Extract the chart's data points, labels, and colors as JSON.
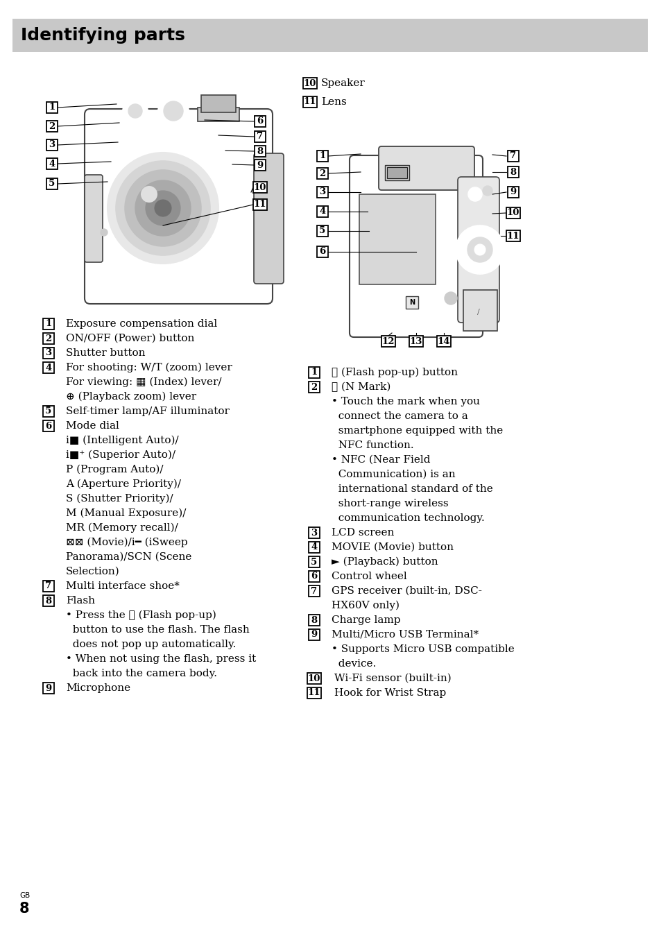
{
  "title": "Identifying parts",
  "title_bg": "#c8c8c8",
  "bg": "#ffffff",
  "title_fontsize": 18,
  "body_fontsize": 11,
  "small_fontsize": 9,
  "page_num": "8",
  "page_label": "GB",
  "left_items": [
    [
      "1",
      "Exposure compensation dial"
    ],
    [
      "2",
      "ON/OFF (Power) button"
    ],
    [
      "3",
      "Shutter button"
    ],
    [
      "4",
      "For shooting: W/T (zoom) lever"
    ],
    [
      "",
      "For viewing: ▦ (Index) lever/"
    ],
    [
      "",
      "⊕ (Playback zoom) lever"
    ],
    [
      "5",
      "Self-timer lamp/AF illuminator"
    ],
    [
      "6",
      "Mode dial"
    ],
    [
      "",
      "i■ (Intelligent Auto)/"
    ],
    [
      "",
      "i■⁺ (Superior Auto)/"
    ],
    [
      "",
      "P (Program Auto)/"
    ],
    [
      "",
      "A (Aperture Priority)/"
    ],
    [
      "",
      "S (Shutter Priority)/"
    ],
    [
      "",
      "M (Manual Exposure)/"
    ],
    [
      "",
      "MR (Memory recall)/"
    ],
    [
      "",
      "⊠⊠ (Movie)/i━ (iSweep"
    ],
    [
      "",
      "Panorama)/SCN (Scene"
    ],
    [
      "",
      "Selection)"
    ],
    [
      "7",
      "Multi interface shoe*"
    ],
    [
      "8",
      "Flash"
    ],
    [
      "",
      "• Press the ⚡ (Flash pop-up)"
    ],
    [
      "",
      "  button to use the flash. The flash"
    ],
    [
      "",
      "  does not pop up automatically."
    ],
    [
      "",
      "• When not using the flash, press it"
    ],
    [
      "",
      "  back into the camera body."
    ],
    [
      "9",
      "Microphone"
    ]
  ],
  "top_right_items": [
    [
      "10",
      "Speaker"
    ],
    [
      "11",
      "Lens"
    ]
  ],
  "right_items": [
    [
      "1",
      "⚡ (Flash pop-up) button"
    ],
    [
      "2",
      "Ⓝ (N Mark)"
    ],
    [
      "",
      "• Touch the mark when you"
    ],
    [
      "",
      "  connect the camera to a"
    ],
    [
      "",
      "  smartphone equipped with the"
    ],
    [
      "",
      "  NFC function."
    ],
    [
      "",
      "• NFC (Near Field"
    ],
    [
      "",
      "  Communication) is an"
    ],
    [
      "",
      "  international standard of the"
    ],
    [
      "",
      "  short-range wireless"
    ],
    [
      "",
      "  communication technology."
    ],
    [
      "3",
      "LCD screen"
    ],
    [
      "4",
      "MOVIE (Movie) button"
    ],
    [
      "5",
      "► (Playback) button"
    ],
    [
      "6",
      "Control wheel"
    ],
    [
      "7",
      "GPS receiver (built-in, DSC-"
    ],
    [
      "",
      "HX60V only)"
    ],
    [
      "8",
      "Charge lamp"
    ],
    [
      "9",
      "Multi/Micro USB Terminal*"
    ],
    [
      "",
      "• Supports Micro USB compatible"
    ],
    [
      "",
      "  device."
    ],
    [
      "10",
      "Wi-Fi sensor (built-in)"
    ],
    [
      "11",
      "Hook for Wrist Strap"
    ]
  ]
}
